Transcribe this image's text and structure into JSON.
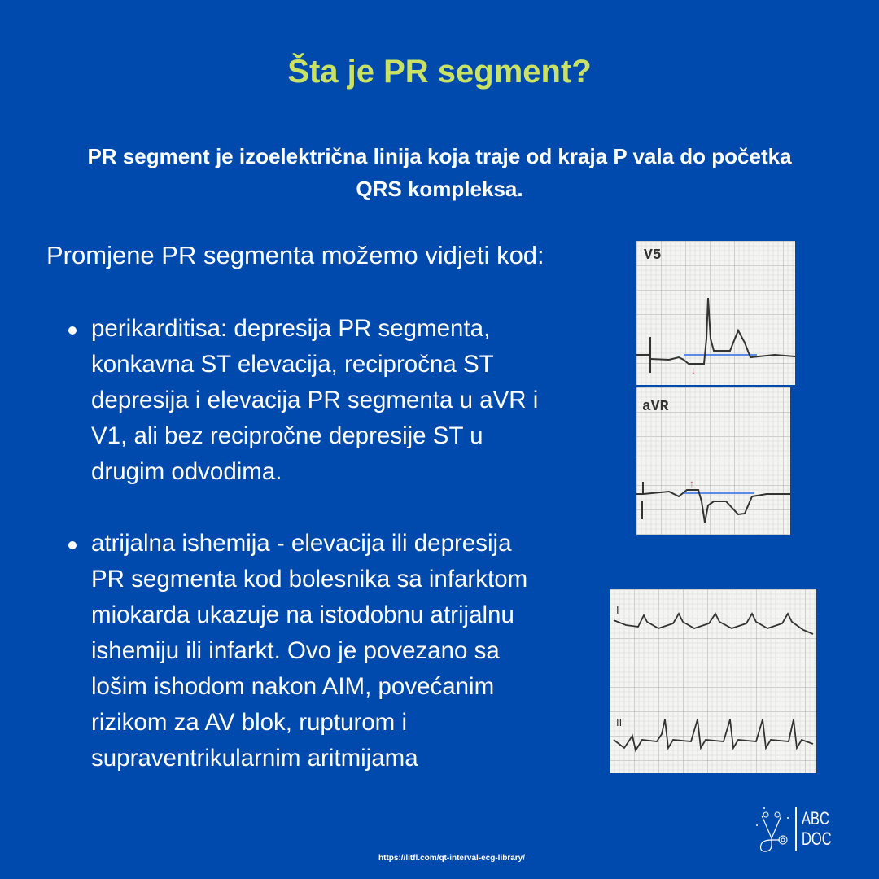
{
  "title": "Šta je PR segment?",
  "subtitle_lines": [
    "PR segment je izoelektrična linija koja traje od kraja P vala do  početka",
    "QRS kompleksa."
  ],
  "intro": "Promjene PR segmenta možemo vidjeti kod:",
  "bullets": [
    "perikarditisa: depresija PR segmenta,\nkonkavna ST elevacija, recipročna ST\ndepresija i elevacija PR segmenta u aVR i\nV1, ali bez recipročne depresije ST u\ndrugim odvodima.",
    "atrijalna ishemija - elevacija ili depresija\nPR segmenta kod bolesnika sa infarktom\nmiokarda ukazuje na istodobnu atrijalnu\nishemiju ili infarkt. Ovo je povezano sa\nlošim ishodom nakon AIM, povećanim\nrizikom za  AV blok, rupturom i\nsupraventrikularnim aritmijama"
  ],
  "ecg_images": {
    "v5_label": "V5",
    "avr_label": "aVR",
    "lead1_label": "I",
    "lead2_label": "II"
  },
  "source_url": "https://litfl.com/qt-interval-ecg-library/",
  "logo": {
    "line1": "ABC",
    "line2": "DOC",
    "icon": "stethoscope-icon"
  },
  "colors": {
    "background": "#004aad",
    "title": "#c9e265",
    "text": "#ffffff",
    "baseline_marker": "#5b8de8",
    "arrow": "#d0455a"
  }
}
